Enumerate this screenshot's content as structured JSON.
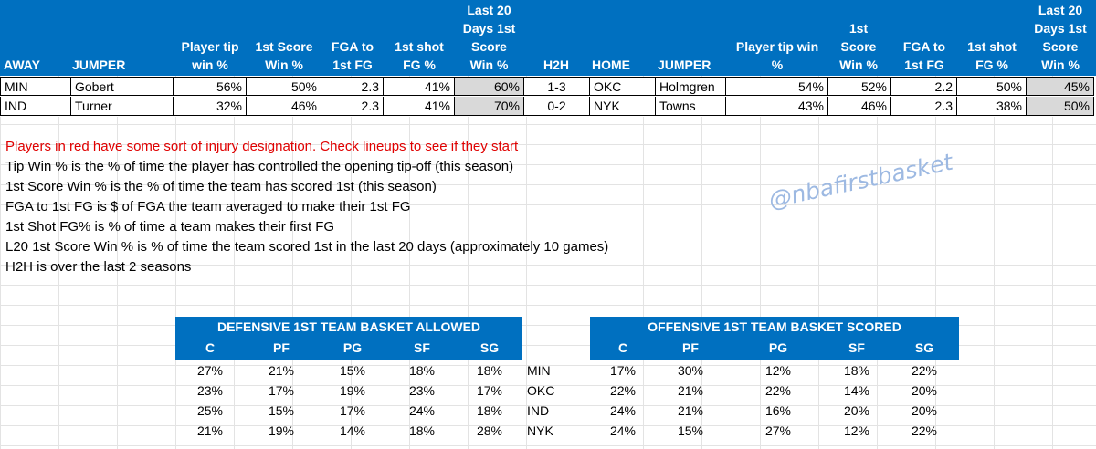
{
  "main_table": {
    "headers": {
      "away": "AWAY",
      "jumper_away": "JUMPER",
      "tip_away": "Player tip\nwin %",
      "score_away": "1st Score\nWin %",
      "fga_away": "FGA to\n1st FG",
      "shot_away": "1st shot\nFG %",
      "l20_away": "Last 20\nDays 1st\nScore\nWin %",
      "h2h": "H2H",
      "home": "HOME",
      "jumper_home": "JUMPER",
      "tip_home": "Player tip win\n%",
      "score_home": "1st\nScore\nWin %",
      "fga_home": "FGA to\n1st FG",
      "shot_home": "1st shot\nFG %",
      "l20_home": "Last 20\nDays 1st\nScore\nWin %"
    },
    "rows": [
      {
        "away": "MIN",
        "jumper_away": "Gobert",
        "tip_away": "56%",
        "score_away": "50%",
        "fga_away": "2.3",
        "shot_away": "41%",
        "l20_away": "60%",
        "h2h": "1-3",
        "home": "OKC",
        "jumper_home": "Holmgren",
        "tip_home": "54%",
        "score_home": "52%",
        "fga_home": "2.2",
        "shot_home": "50%",
        "l20_home": "45%"
      },
      {
        "away": "IND",
        "jumper_away": "Turner",
        "tip_away": "32%",
        "score_away": "46%",
        "fga_away": "2.3",
        "shot_away": "41%",
        "l20_away": "70%",
        "h2h": "0-2",
        "home": "NYK",
        "jumper_home": "Towns",
        "tip_home": "43%",
        "score_home": "46%",
        "fga_home": "2.3",
        "shot_home": "38%",
        "l20_home": "50%"
      }
    ]
  },
  "notes": {
    "injury": "Players in red have some sort of injury designation.  Check lineups to see if they start",
    "tip": "Tip Win % is the % of time the player has controlled the opening tip-off (this season)",
    "score": "1st Score Win % is the % of time the team has scored 1st (this season)",
    "fga": "FGA to 1st FG is $ of FGA the team averaged to make their 1st FG",
    "shot": "1st Shot FG% is % of time a team makes their first FG",
    "l20": "L20 1st Score Win % is % of time the team scored 1st in the last 20 days (approximately 10 games)",
    "h2h": "H2H is over the last 2 seasons"
  },
  "watermark": "@nbafirstbasket",
  "defensive": {
    "title": "DEFENSIVE 1ST TEAM  BASKET ALLOWED",
    "columns": [
      "C",
      "PF",
      "PG",
      "SF",
      "SG"
    ],
    "rows": [
      {
        "values": [
          "27%",
          "21%",
          "15%",
          "18%",
          "18%"
        ],
        "team": "MIN"
      },
      {
        "values": [
          "23%",
          "17%",
          "19%",
          "23%",
          "17%"
        ],
        "team": "OKC"
      },
      {
        "values": [
          "25%",
          "15%",
          "17%",
          "24%",
          "18%"
        ],
        "team": "IND"
      },
      {
        "values": [
          "21%",
          "19%",
          "14%",
          "18%",
          "28%"
        ],
        "team": "NYK"
      }
    ]
  },
  "offensive": {
    "title": "OFFENSIVE 1ST TEAM BASKET SCORED",
    "columns": [
      "C",
      "PF",
      "PG",
      "SF",
      "SG"
    ],
    "rows": [
      {
        "values": [
          "17%",
          "30%",
          "12%",
          "18%",
          "22%"
        ]
      },
      {
        "values": [
          "22%",
          "21%",
          "22%",
          "14%",
          "20%"
        ]
      },
      {
        "values": [
          "24%",
          "21%",
          "16%",
          "20%",
          "20%"
        ]
      },
      {
        "values": [
          "24%",
          "15%",
          "27%",
          "12%",
          "22%"
        ]
      }
    ]
  },
  "colors": {
    "header_blue": "#0070c0",
    "highlight_grey": "#d9d9d9",
    "note_red": "#e00000",
    "watermark": "#9db9e2"
  }
}
